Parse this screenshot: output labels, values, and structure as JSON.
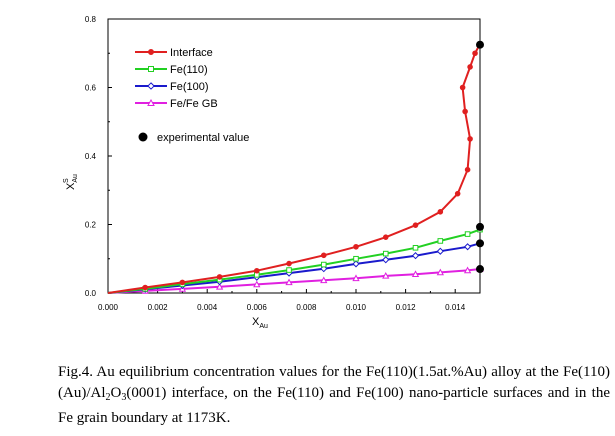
{
  "chart_data": {
    "type": "line",
    "xlabel": "X",
    "xlabel_sub": "Au",
    "ylabel": "X",
    "ylabel_sup": "S",
    "ylabel_sub": "Au",
    "xlim": [
      0.0,
      0.015
    ],
    "ylim": [
      0.0,
      0.8
    ],
    "xticks": [
      "0.000",
      "0.002",
      "0.004",
      "0.006",
      "0.008",
      "0.010",
      "0.012",
      "0.014"
    ],
    "yticks": [
      "0.0",
      "0.2",
      "0.4",
      "0.6",
      "0.8"
    ],
    "legend_position": "top-left",
    "series": [
      {
        "name": "Interface",
        "color": "#e02020",
        "marker": "filled-circle",
        "points": [
          [
            0.0,
            0.0
          ],
          [
            0.0015,
            0.016
          ],
          [
            0.003,
            0.031
          ],
          [
            0.0045,
            0.047
          ],
          [
            0.006,
            0.065
          ],
          [
            0.0073,
            0.086
          ],
          [
            0.0087,
            0.11
          ],
          [
            0.01,
            0.135
          ],
          [
            0.0112,
            0.163
          ],
          [
            0.0124,
            0.198
          ],
          [
            0.0134,
            0.237
          ],
          [
            0.0141,
            0.29
          ],
          [
            0.0145,
            0.36
          ],
          [
            0.0146,
            0.45
          ],
          [
            0.0144,
            0.53
          ],
          [
            0.0143,
            0.6
          ],
          [
            0.0146,
            0.66
          ],
          [
            0.0148,
            0.7
          ],
          [
            0.015,
            0.727
          ]
        ]
      },
      {
        "name": "Fe(110)",
        "color": "#22d022",
        "marker": "open-square",
        "points": [
          [
            0.0,
            0.0
          ],
          [
            0.0015,
            0.012
          ],
          [
            0.003,
            0.026
          ],
          [
            0.0045,
            0.039
          ],
          [
            0.006,
            0.053
          ],
          [
            0.0073,
            0.067
          ],
          [
            0.0087,
            0.083
          ],
          [
            0.01,
            0.1
          ],
          [
            0.0112,
            0.115
          ],
          [
            0.0124,
            0.132
          ],
          [
            0.0134,
            0.152
          ],
          [
            0.0145,
            0.172
          ],
          [
            0.015,
            0.185
          ]
        ]
      },
      {
        "name": "Fe(100)",
        "color": "#1a1acc",
        "marker": "open-diamond",
        "points": [
          [
            0.0,
            0.0
          ],
          [
            0.0015,
            0.011
          ],
          [
            0.003,
            0.022
          ],
          [
            0.0045,
            0.033
          ],
          [
            0.006,
            0.046
          ],
          [
            0.0073,
            0.058
          ],
          [
            0.0087,
            0.071
          ],
          [
            0.01,
            0.085
          ],
          [
            0.0112,
            0.097
          ],
          [
            0.0124,
            0.109
          ],
          [
            0.0134,
            0.122
          ],
          [
            0.0145,
            0.135
          ],
          [
            0.015,
            0.145
          ]
        ]
      },
      {
        "name": "Fe/Fe GB",
        "color": "#e020e0",
        "marker": "open-triangle",
        "points": [
          [
            0.0,
            0.0
          ],
          [
            0.0015,
            0.006
          ],
          [
            0.003,
            0.012
          ],
          [
            0.0045,
            0.018
          ],
          [
            0.006,
            0.025
          ],
          [
            0.0073,
            0.031
          ],
          [
            0.0087,
            0.037
          ],
          [
            0.01,
            0.043
          ],
          [
            0.0112,
            0.05
          ],
          [
            0.0124,
            0.055
          ],
          [
            0.0134,
            0.06
          ],
          [
            0.0145,
            0.066
          ],
          [
            0.015,
            0.07
          ]
        ]
      }
    ],
    "experimental": {
      "name": "experimental value",
      "color": "#000000",
      "points": [
        [
          0.015,
          0.725
        ],
        [
          0.015,
          0.193
        ],
        [
          0.015,
          0.145
        ],
        [
          0.015,
          0.07
        ]
      ]
    }
  },
  "caption": {
    "fig_label": "Fig.4.",
    "part1": " Au equilibrium concentration values for the Fe(110)(1.5at.%Au) alloy at the Fe(110)(Au)/Al",
    "sub_a": "2",
    "part2": "O",
    "sub_b": "3",
    "part3": "(0001) interface, on the Fe(110) and Fe(100) nano-particle surfaces and in the Fe grain boundary at 1173K."
  }
}
